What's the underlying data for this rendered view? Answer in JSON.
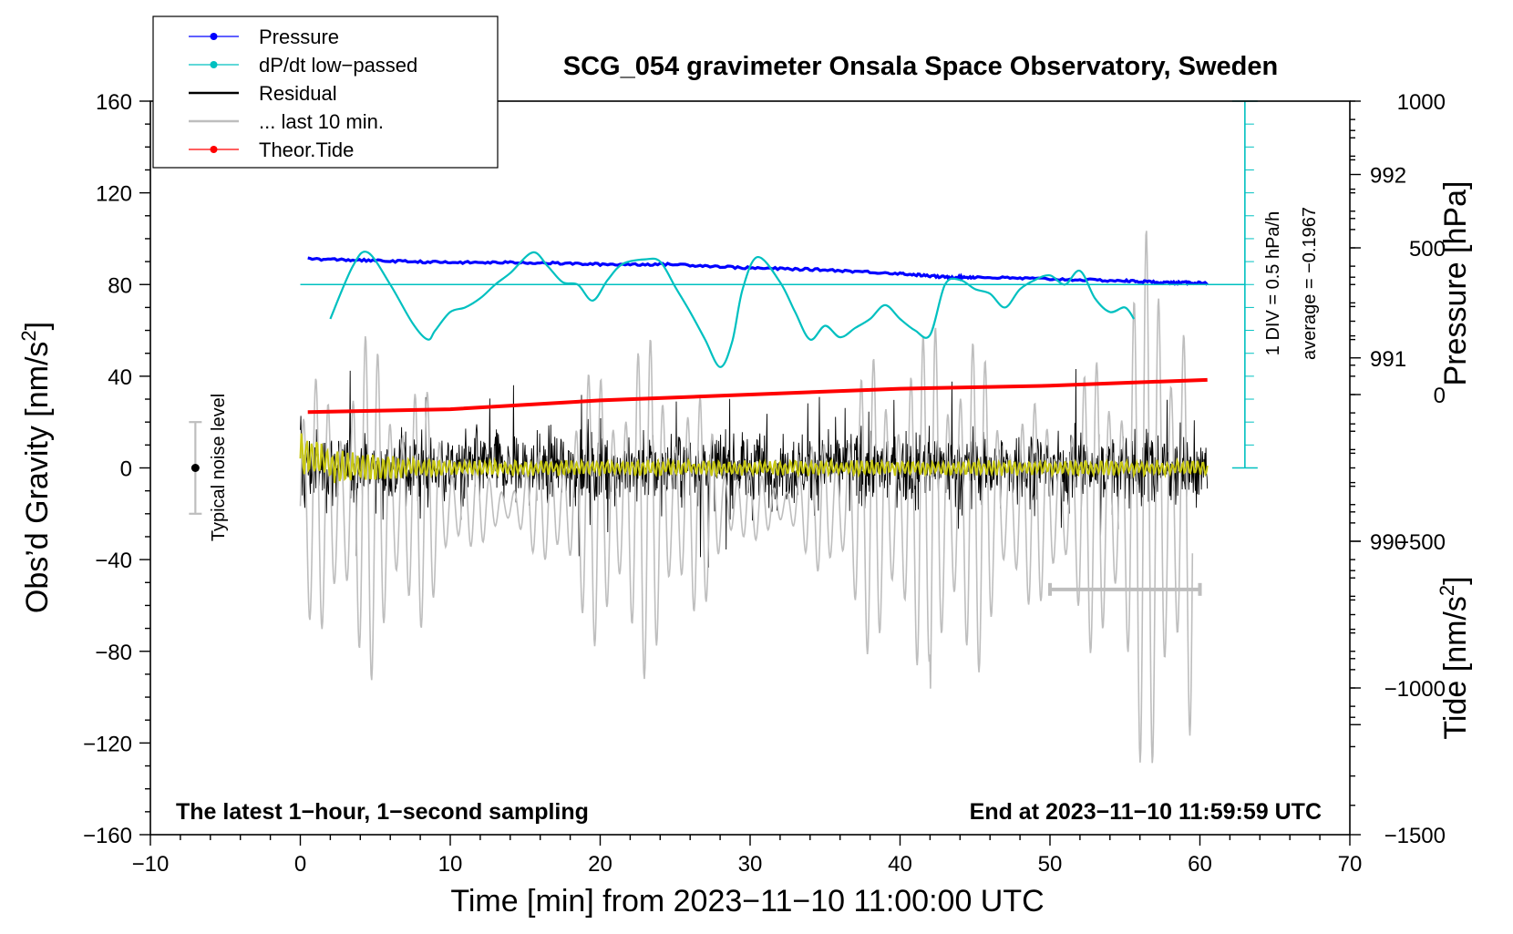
{
  "chart_data": {
    "type": "line",
    "title": "SCG_054 gravimeter Onsala Space Observatory, Sweden",
    "xlabel": "Time [min] from 2023−11−10 11:00:00 UTC",
    "ylabel_left_main": "Obs’d Gravity [nm/s",
    "ylabel_left_sup": "2",
    "ylabel_left_end": "]",
    "ylabel_right_pressure": "Pressure [hPa]",
    "ylabel_right_tide_main": "Tide [nm/s",
    "ylabel_right_tide_sup": "2",
    "ylabel_right_tide_end": "]",
    "xlim": [
      -10,
      70
    ],
    "ylim_gravity": [
      -160,
      160
    ],
    "ylim_pressure": [
      988.4,
      992.4
    ],
    "ylim_tide": [
      -1500,
      1000
    ],
    "x_ticks": [
      "−10",
      "0",
      "10",
      "20",
      "30",
      "40",
      "50",
      "60",
      "70"
    ],
    "y_left_ticks": [
      "160",
      "120",
      "80",
      "40",
      "0",
      "−40",
      "−80",
      "−120",
      "−160"
    ],
    "y_pressure_ticks": [
      "992",
      "991",
      "990"
    ],
    "y_tide_ticks": [
      "1000",
      "500",
      "0",
      "−500",
      "−1000",
      "−1500"
    ],
    "note_left": "The latest 1−hour, 1−second sampling",
    "note_right": "End at 2023−11−10 11:59:59 UTC",
    "noise_label": "Typical noise level",
    "noise_range": [
      -20,
      20
    ],
    "noise_x": -7,
    "scale_text_1": "1 DIV = 0.5 hPa/h",
    "scale_text_2": "average = −0.1967",
    "dpdt_scale_x": 63,
    "dpdt_scale_y_range": [
      0,
      160
    ],
    "dpdt_zero_level": 80,
    "last10_bar": {
      "x0": 50,
      "x1": 60,
      "y": -53
    },
    "legend": [
      {
        "label": "Pressure",
        "color": "#0000ff",
        "marker": true
      },
      {
        "label": "dP/dt low−passed",
        "color": "#00c0c0",
        "marker": true
      },
      {
        "label": "Residual",
        "color": "#000000",
        "marker": false
      },
      {
        "label": "... last 10 min.",
        "color": "#bebebe",
        "marker": false
      },
      {
        "label": "Theor.Tide",
        "color": "#ff0000",
        "marker": true
      }
    ],
    "series": [
      {
        "name": "Pressure",
        "color": "#0000ff",
        "axis": "pressure",
        "x": [
          0.5,
          5,
          10,
          15,
          20,
          25,
          30,
          35,
          40,
          43,
          45,
          50,
          55,
          58,
          60.5
        ],
        "values": [
          991.54,
          991.53,
          991.52,
          991.52,
          991.51,
          991.51,
          991.49,
          991.48,
          991.46,
          991.44,
          991.44,
          991.43,
          991.42,
          991.41,
          991.41
        ]
      },
      {
        "name": "dP/dt low-passed",
        "color": "#00c0c0",
        "axis": "gravity",
        "x": [
          2,
          3.5,
          4.5,
          6,
          7.5,
          8.5,
          9,
          10,
          11,
          12,
          13,
          14,
          15.5,
          16.5,
          17.5,
          18.5,
          19.5,
          20.5,
          21.5,
          23,
          24,
          25,
          26,
          27,
          28,
          28.8,
          29.5,
          30.5,
          32,
          33,
          34,
          35,
          36,
          37,
          38,
          39,
          40,
          41,
          42,
          43,
          44,
          45,
          46,
          47,
          48,
          49,
          50,
          51,
          52,
          53,
          54,
          55,
          55.6
        ],
        "values": [
          65,
          88,
          94,
          80,
          63,
          56,
          60,
          68,
          70,
          74,
          80,
          85,
          94,
          88,
          81,
          80,
          73,
          82,
          89,
          91,
          90,
          79,
          68,
          56,
          44,
          55,
          78,
          92,
          81,
          68,
          56,
          62,
          57,
          61,
          65,
          71,
          65,
          60,
          58,
          80,
          82,
          78,
          76,
          70,
          78,
          82,
          84,
          80,
          86,
          74,
          68,
          70,
          65
        ]
      },
      {
        "name": "Residual",
        "color": "#000000",
        "axis": "gravity",
        "x": [
          0,
          60.5
        ],
        "envelope": [
          -50,
          55
        ]
      },
      {
        "name": "Residual low-passed",
        "color": "#c8c814",
        "axis": "gravity",
        "x": [
          0,
          60.5
        ],
        "values": [
          0,
          0
        ]
      },
      {
        "name": "... last 10 min.",
        "color": "#bebebe",
        "axis": "tide",
        "x": [
          0,
          59.5
        ],
        "values_range": [
          -1200,
          500
        ]
      },
      {
        "name": "Theor.Tide",
        "color": "#ff0000",
        "axis": "tide",
        "x": [
          0.5,
          10,
          20,
          30,
          40,
          50,
          55,
          60.5
        ],
        "values": [
          -60,
          -50,
          -20,
          0,
          20,
          30,
          40,
          50
        ]
      }
    ]
  }
}
